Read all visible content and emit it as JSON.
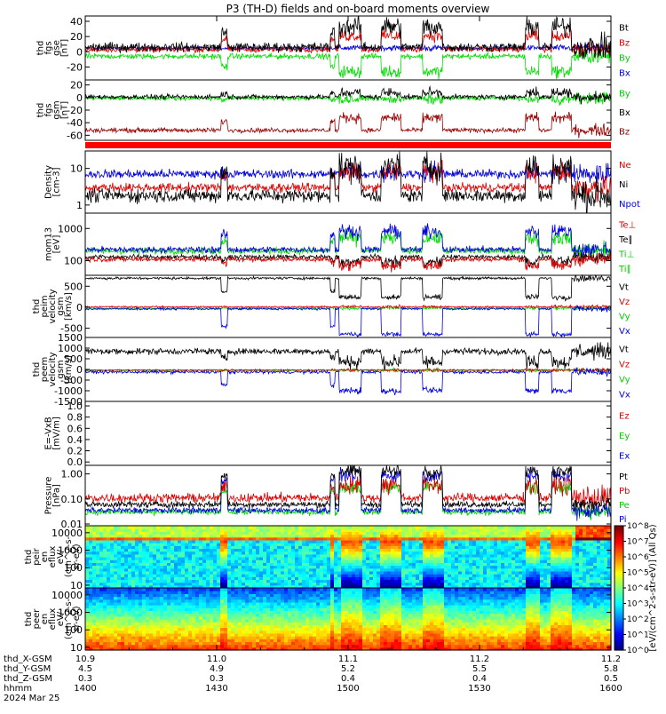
{
  "title": "P3 (TH-D) fields and on-board moments overview",
  "chart_data": [
    {
      "id": "p1",
      "type": "line",
      "ylabel": [
        "thd",
        "fgs",
        "gse",
        "[nT]"
      ],
      "yticks": [
        {
          "v": -20,
          "t": "-20"
        },
        {
          "v": 0,
          "t": "0"
        },
        {
          "v": 20,
          "t": "20"
        },
        {
          "v": 40,
          "t": "40"
        }
      ],
      "ylim": [
        -37,
        47
      ],
      "log": false,
      "legend": [
        {
          "t": "Bt",
          "c": "#000000"
        },
        {
          "t": "Bz",
          "c": "#dd0000"
        },
        {
          "t": "By",
          "c": "#00cc00"
        },
        {
          "t": "Bx",
          "c": "#0000dd"
        }
      ],
      "series": [
        {
          "name": "Bx",
          "color": "#0000dd",
          "base": 5,
          "pert": 0,
          "noise": 1.5
        },
        {
          "name": "By",
          "color": "#00dd00",
          "base": -6,
          "pert": -20,
          "noise": 3
        },
        {
          "name": "Bz",
          "color": "#dd0000",
          "base": 3,
          "pert": 18,
          "noise": 3
        },
        {
          "name": "Bt",
          "color": "#000000",
          "base": 6,
          "pert": 27,
          "noise": 5
        }
      ]
    },
    {
      "id": "p2",
      "type": "line",
      "ylabel": [
        "thd",
        "fgs",
        "gsm",
        "[nT]"
      ],
      "yticks": [
        {
          "v": -60,
          "t": "-60"
        },
        {
          "v": -40,
          "t": "-40"
        },
        {
          "v": -20,
          "t": "-20"
        },
        {
          "v": 0,
          "t": "0"
        },
        {
          "v": 20,
          "t": "20"
        }
      ],
      "ylim": [
        -68,
        28
      ],
      "log": false,
      "legend": [
        {
          "t": "By",
          "c": "#00cc00"
        },
        {
          "t": "Bx",
          "c": "#000000"
        },
        {
          "t": "Bz",
          "c": "#880000"
        }
      ],
      "series": [
        {
          "name": "By",
          "color": "#00dd00",
          "base": -1,
          "pert": -2,
          "noise": 3
        },
        {
          "name": "Bx",
          "color": "#000000",
          "base": 1,
          "pert": 7,
          "noise": 3
        },
        {
          "name": "Bz",
          "color": "#990000",
          "base": -52,
          "pert": 20,
          "noise": 3
        }
      ]
    },
    {
      "id": "p3",
      "type": "line",
      "ylabel": [
        "Density",
        "[cm-3]"
      ],
      "yticks": [
        {
          "v": 1,
          "t": "1"
        },
        {
          "v": 10,
          "t": "10"
        }
      ],
      "ylim": [
        0.6,
        30
      ],
      "log": true,
      "legend": [
        {
          "t": "Ne",
          "c": "#dd0000"
        },
        {
          "t": "Ni",
          "c": "#000000"
        },
        {
          "t": "Npot",
          "c": "#0000dd"
        }
      ],
      "series": [
        {
          "name": "Npot",
          "color": "#0000dd",
          "base": 7,
          "pert": 1,
          "noise": 0.1
        },
        {
          "name": "Ne",
          "color": "#dd0000",
          "base": 3,
          "pert": 5,
          "noise": 0.1
        },
        {
          "name": "Ni",
          "color": "#000000",
          "base": 1.8,
          "pert": 9,
          "noise": 0.15
        }
      ]
    },
    {
      "id": "p4",
      "type": "line",
      "ylabel": [
        "mom13",
        "[eV]"
      ],
      "yticks": [
        {
          "v": 100,
          "t": "100"
        },
        {
          "v": 1000,
          "t": "1000"
        }
      ],
      "ylim": [
        35,
        3000
      ],
      "log": true,
      "legend": [
        {
          "t": "Te⊥",
          "c": "#dd0000"
        },
        {
          "t": "Te∥",
          "c": "#000000"
        },
        {
          "t": "Ti⊥",
          "c": "#00cc00"
        },
        {
          "t": "Ti∥",
          "c": "#00cc00"
        }
      ],
      "series": [
        {
          "name": "Ti∥",
          "color": "#00dd00",
          "base": 200,
          "pert": 300,
          "noise": 0.08
        },
        {
          "name": "Ti⊥",
          "color": "#0000dd",
          "base": 220,
          "pert": 600,
          "noise": 0.08
        },
        {
          "name": "Te∥",
          "color": "#000000",
          "base": 130,
          "pert": -40,
          "noise": 0.06
        },
        {
          "name": "Te⊥",
          "color": "#dd0000",
          "base": 110,
          "pert": -40,
          "noise": 0.06
        }
      ]
    },
    {
      "id": "p5",
      "type": "line",
      "ylabel": [
        "thd",
        "peim",
        "velocity",
        "gsm",
        "[km/s]"
      ],
      "yticks": [
        {
          "v": -500,
          "t": "-500"
        },
        {
          "v": 0,
          "t": "0"
        },
        {
          "v": 500,
          "t": "500"
        }
      ],
      "ylim": [
        -720,
        760
      ],
      "log": false,
      "legend": [
        {
          "t": "Vt",
          "c": "#000000"
        },
        {
          "t": "Vz",
          "c": "#dd0000"
        },
        {
          "t": "Vy",
          "c": "#00cc00"
        },
        {
          "t": "Vx",
          "c": "#0000dd"
        }
      ],
      "series": [
        {
          "name": "Vy",
          "color": "#00dd00",
          "base": -20,
          "pert": 0,
          "noise": 15
        },
        {
          "name": "Vz",
          "color": "#dd0000",
          "base": 10,
          "pert": 0,
          "noise": 15
        },
        {
          "name": "Vx",
          "color": "#0000dd",
          "base": -40,
          "pert": -600,
          "noise": 20
        },
        {
          "name": "Vt",
          "color": "#000000",
          "base": 690,
          "pert": -450,
          "noise": 25
        }
      ]
    },
    {
      "id": "p6",
      "type": "line",
      "ylabel": [
        "thd",
        "peem",
        "velocity",
        "gsm",
        "[km/s]"
      ],
      "yticks": [
        {
          "v": -1500,
          "t": "-1500"
        },
        {
          "v": -1000,
          "t": "-1000"
        },
        {
          "v": -500,
          "t": "-500"
        },
        {
          "v": 0,
          "t": "0"
        },
        {
          "v": 500,
          "t": "500"
        },
        {
          "v": 1000,
          "t": "1000"
        },
        {
          "v": 1500,
          "t": "1500"
        }
      ],
      "ylim": [
        -1500,
        1500
      ],
      "log": false,
      "legend": [
        {
          "t": "Vt",
          "c": "#000000"
        },
        {
          "t": "Vz",
          "c": "#dd0000"
        },
        {
          "t": "Vy",
          "c": "#00cc00"
        },
        {
          "t": "Vx",
          "c": "#0000dd"
        }
      ],
      "series": [
        {
          "name": "Vy",
          "color": "#00dd00",
          "base": -40,
          "pert": 0,
          "noise": 30
        },
        {
          "name": "Vz",
          "color": "#dd0000",
          "base": -30,
          "pert": 0,
          "noise": 30
        },
        {
          "name": "Vx",
          "color": "#0000dd",
          "base": -120,
          "pert": -880,
          "noise": 60
        },
        {
          "name": "Vt",
          "color": "#000000",
          "base": 850,
          "pert": -500,
          "noise": 120
        }
      ]
    },
    {
      "id": "p7",
      "type": "line",
      "ylabel": [
        "E=-VxB",
        "[mV/m]"
      ],
      "yticks": [
        {
          "v": 0,
          "t": "0.0"
        },
        {
          "v": 0.2,
          "t": "0.2"
        },
        {
          "v": 0.4,
          "t": "0.4"
        },
        {
          "v": 0.6,
          "t": "0.6"
        },
        {
          "v": 0.8,
          "t": "0.8"
        },
        {
          "v": 1.0,
          "t": "1.0"
        }
      ],
      "ylim": [
        -0.06,
        1.08
      ],
      "log": false,
      "legend": [
        {
          "t": "Ez",
          "c": "#dd0000"
        },
        {
          "t": "Ey",
          "c": "#00cc00"
        },
        {
          "t": "Ex",
          "c": "#0000dd"
        }
      ],
      "series": []
    },
    {
      "id": "p8",
      "type": "line",
      "ylabel": [
        "Pressure",
        "[nPa]"
      ],
      "yticks": [
        {
          "v": 0.01,
          "t": "0.01"
        },
        {
          "v": 0.1,
          "t": "0.10"
        },
        {
          "v": 1,
          "t": "1.00"
        }
      ],
      "ylim": [
        0.0085,
        2.2
      ],
      "log": true,
      "legend": [
        {
          "t": "Pt",
          "c": "#000000"
        },
        {
          "t": "Pb",
          "c": "#dd0000"
        },
        {
          "t": "Pe",
          "c": "#00cc00"
        },
        {
          "t": "Pi",
          "c": "#0000dd"
        }
      ],
      "series": [
        {
          "name": "Pe",
          "color": "#00dd00",
          "base": 0.03,
          "pert": 0.27,
          "noise": 0.1
        },
        {
          "name": "Pb",
          "color": "#dd0000",
          "base": 0.11,
          "pert": 0.25,
          "noise": 0.15
        },
        {
          "name": "Pi",
          "color": "#0000dd",
          "base": 0.035,
          "pert": 0.85,
          "noise": 0.1
        },
        {
          "name": "Pt",
          "color": "#000000",
          "base": 0.06,
          "pert": 1.2,
          "noise": 0.1
        }
      ]
    },
    {
      "id": "s1",
      "type": "heatmap",
      "ylabel": [
        "thd",
        "peir",
        "en",
        "eflux",
        "eV/",
        "(cm^2-s-",
        "sr-eV)"
      ],
      "yticks": [
        {
          "v": 10,
          "t": "10"
        },
        {
          "v": 100,
          "t": "100"
        },
        {
          "v": 1000,
          "t": "1000"
        },
        {
          "v": 10000,
          "t": "10000"
        }
      ],
      "ylim": [
        7,
        25000
      ],
      "log": true,
      "kind": "ion"
    },
    {
      "id": "s2",
      "type": "heatmap",
      "ylabel": [
        "thd",
        "peer",
        "en",
        "eflux",
        "eV/",
        "(cm^2-s-",
        "sr-eV)"
      ],
      "yticks": [
        {
          "v": 10,
          "t": "10"
        },
        {
          "v": 100,
          "t": "100"
        },
        {
          "v": 1000,
          "t": "1000"
        },
        {
          "v": 10000,
          "t": "10000"
        }
      ],
      "ylim": [
        7,
        25000
      ],
      "log": true,
      "kind": "electron"
    }
  ],
  "time": {
    "start_hhmm": "14:00",
    "end_hhmm": "16:00",
    "intervals": [
      [
        58.0,
        63.0
      ],
      [
        67.5,
        72.0
      ],
      [
        77.0,
        81.5
      ],
      [
        100.5,
        103.5
      ],
      [
        106.5,
        111.0
      ]
    ],
    "spikes": [
      [
        31.0,
        32.5
      ],
      [
        56.0,
        57.0
      ]
    ],
    "noisy_from": 111.5
  },
  "colorbar": {
    "label": "[eV/(cm^2-s-str-eV)] (All Qs)",
    "ticks": [
      "10^0",
      "10^1",
      "10^2",
      "10^3",
      "10^4",
      "10^5",
      "10^6",
      "10^7",
      "10^8"
    ]
  },
  "ephemeris": {
    "rows": [
      {
        "label": "thd_X-GSM",
        "values": [
          "10.9",
          "11.0",
          "11.1",
          "11.2",
          "11.2"
        ]
      },
      {
        "label": "thd_Y-GSM",
        "values": [
          "4.5",
          "4.9",
          "5.2",
          "5.5",
          "5.8"
        ]
      },
      {
        "label": "thd_Z-GSM",
        "values": [
          "0.3",
          "0.3",
          "0.4",
          "0.4",
          "0.5"
        ]
      },
      {
        "label": "hhmm",
        "values": [
          "1400",
          "1430",
          "1500",
          "1530",
          "1600"
        ]
      }
    ],
    "date": "2024 Mar 25"
  }
}
